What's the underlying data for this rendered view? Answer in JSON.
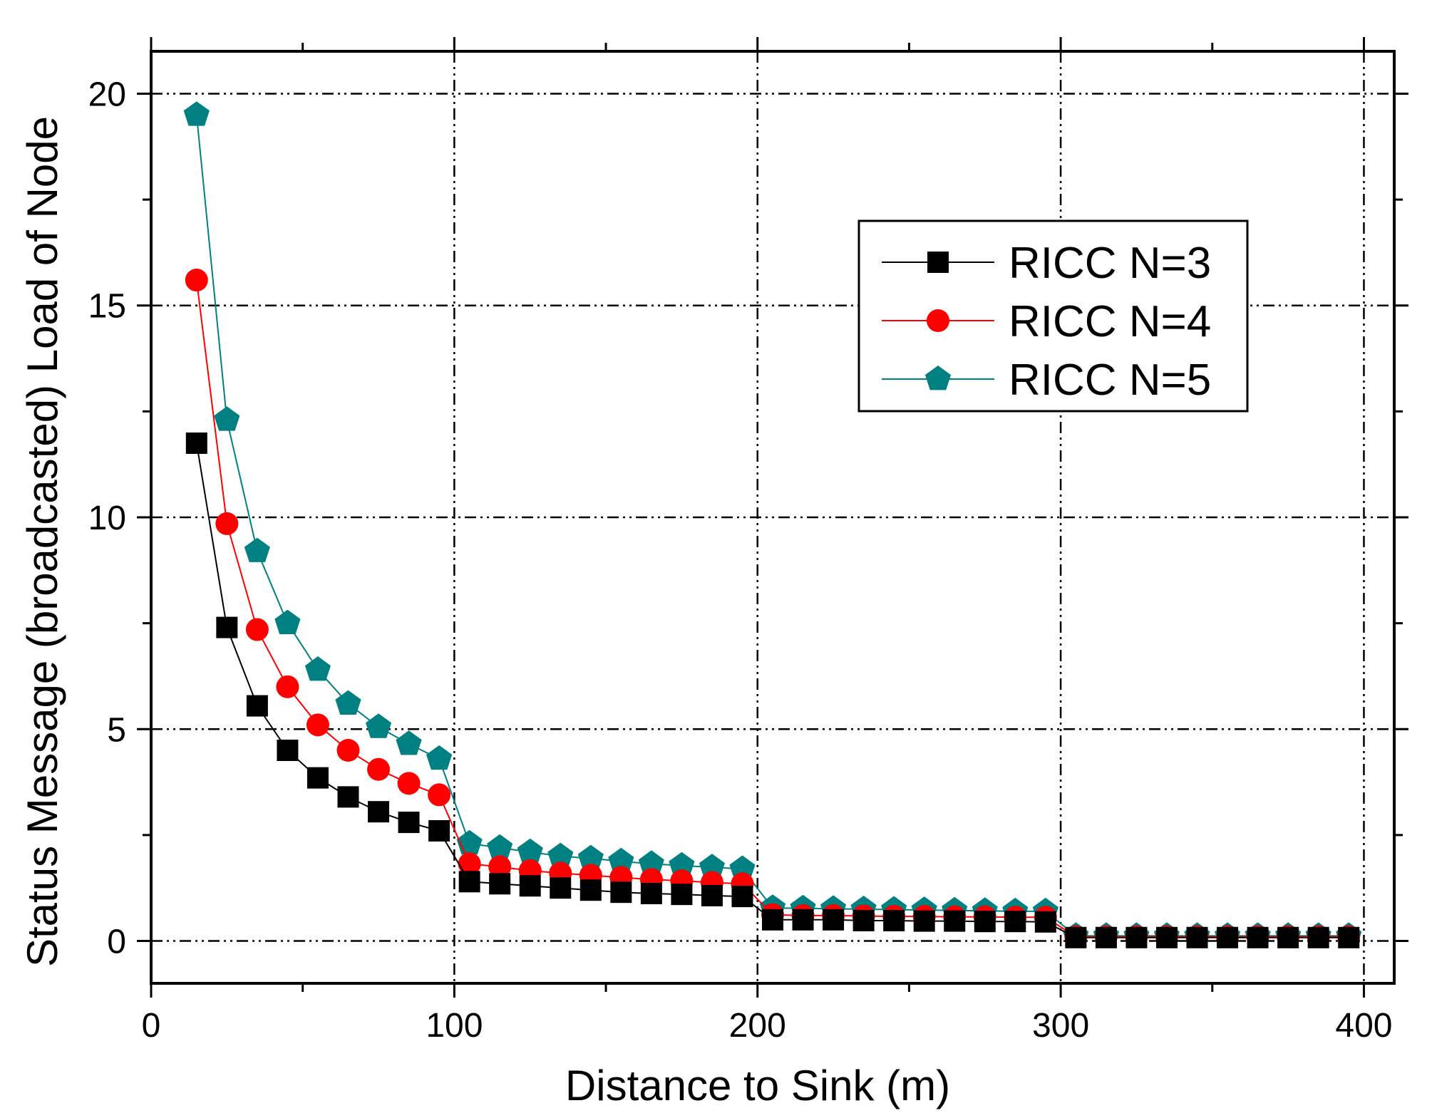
{
  "chart_data": {
    "type": "line",
    "title": "",
    "xlabel": "Distance to Sink (m)",
    "ylabel": "Status Message (broadcasted) Load of Node",
    "xlim": [
      0,
      410
    ],
    "ylim": [
      -1,
      21
    ],
    "xticks": [
      0,
      100,
      200,
      300,
      400
    ],
    "xtick_labels": [
      "0",
      "100",
      "200",
      "300",
      "400"
    ],
    "yticks": [
      0,
      5,
      10,
      15,
      20
    ],
    "ytick_labels": [
      "0",
      "5",
      "10",
      "15",
      "20"
    ],
    "grid": true,
    "legend_position": "top-right",
    "x": [
      15,
      25,
      35,
      45,
      55,
      65,
      75,
      85,
      95,
      105,
      115,
      125,
      135,
      145,
      155,
      165,
      175,
      185,
      195,
      205,
      215,
      225,
      235,
      245,
      255,
      265,
      275,
      285,
      295,
      305,
      315,
      325,
      335,
      345,
      355,
      365,
      375,
      385,
      395
    ],
    "series": [
      {
        "name": "RICC N=3",
        "color": "#000000",
        "marker": "square",
        "values": [
          11.75,
          7.4,
          5.55,
          4.5,
          3.85,
          3.4,
          3.05,
          2.8,
          2.6,
          1.4,
          1.35,
          1.3,
          1.25,
          1.2,
          1.15,
          1.12,
          1.1,
          1.07,
          1.05,
          0.5,
          0.5,
          0.5,
          0.48,
          0.48,
          0.47,
          0.47,
          0.46,
          0.46,
          0.45,
          0.08,
          0.08,
          0.08,
          0.08,
          0.08,
          0.08,
          0.08,
          0.08,
          0.08,
          0.08
        ]
      },
      {
        "name": "RICC N=4",
        "color": "#ff0000",
        "marker": "circle",
        "values": [
          15.6,
          9.85,
          7.35,
          6.0,
          5.1,
          4.5,
          4.05,
          3.72,
          3.45,
          1.82,
          1.75,
          1.66,
          1.6,
          1.55,
          1.5,
          1.45,
          1.42,
          1.38,
          1.35,
          0.62,
          0.6,
          0.6,
          0.59,
          0.58,
          0.58,
          0.57,
          0.57,
          0.56,
          0.56,
          0.1,
          0.1,
          0.1,
          0.1,
          0.1,
          0.1,
          0.1,
          0.1,
          0.1,
          0.1
        ]
      },
      {
        "name": "RICC N=5",
        "color": "#008080",
        "marker": "pentagon",
        "values": [
          19.5,
          12.3,
          9.2,
          7.5,
          6.4,
          5.6,
          5.05,
          4.65,
          4.3,
          2.3,
          2.2,
          2.1,
          2.0,
          1.95,
          1.88,
          1.82,
          1.78,
          1.74,
          1.7,
          0.78,
          0.77,
          0.76,
          0.75,
          0.74,
          0.73,
          0.72,
          0.71,
          0.7,
          0.7,
          0.12,
          0.12,
          0.12,
          0.12,
          0.12,
          0.12,
          0.12,
          0.12,
          0.12,
          0.12
        ]
      }
    ]
  }
}
